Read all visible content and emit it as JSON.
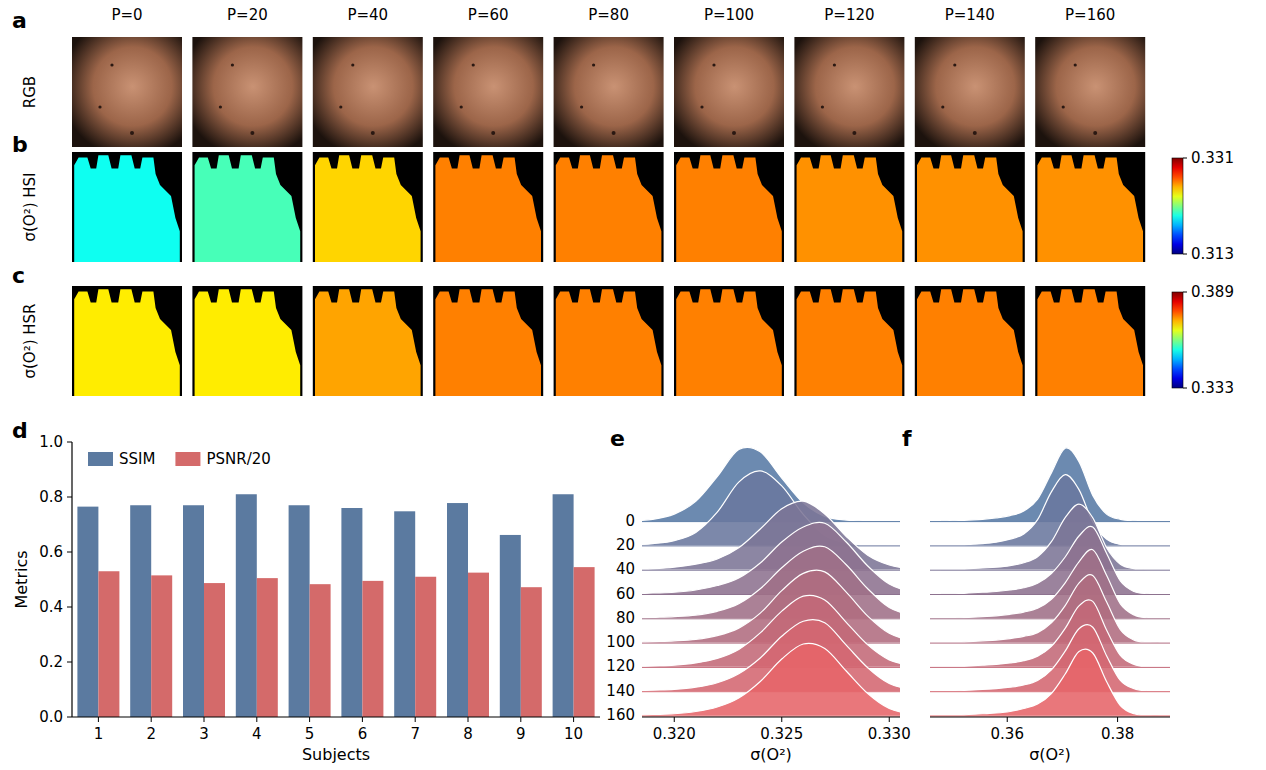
{
  "chart_data": [
    {
      "type": "image_row",
      "panel": "a",
      "row_label": "RGB",
      "categories": [
        "P=0",
        "P=20",
        "P=40",
        "P=60",
        "P=80",
        "P=100",
        "P=120",
        "P=140",
        "P=160"
      ]
    },
    {
      "type": "heatmap",
      "panel": "b",
      "row_label": "σ(O²) HSI",
      "values": [
        0.32,
        0.321,
        0.325,
        0.3265,
        0.3265,
        0.3265,
        0.3262,
        0.3262,
        0.3262
      ],
      "colorbar": {
        "range": [
          0.313,
          0.331
        ],
        "ticks": [
          0.313,
          0.331
        ]
      }
    },
    {
      "type": "heatmap",
      "panel": "c",
      "row_label": "σ(O²) HSR",
      "values": [
        0.369,
        0.369,
        0.373,
        0.375,
        0.375,
        0.375,
        0.375,
        0.375,
        0.375
      ],
      "colorbar": {
        "range": [
          0.333,
          0.389
        ],
        "ticks": [
          0.333,
          0.389
        ]
      }
    },
    {
      "type": "bar",
      "panel": "d",
      "x_label": "Subjects",
      "y_label": "Metrics",
      "categories": [
        "1",
        "2",
        "3",
        "4",
        "5",
        "6",
        "7",
        "8",
        "9",
        "10"
      ],
      "series": [
        {
          "name": "SSIM",
          "color": "#5b7aa0",
          "values": [
            0.765,
            0.77,
            0.77,
            0.81,
            0.77,
            0.76,
            0.748,
            0.778,
            0.662,
            0.81
          ]
        },
        {
          "name": "PSNR/20",
          "color": "#d46a6a",
          "values": [
            0.53,
            0.515,
            0.487,
            0.505,
            0.483,
            0.495,
            0.51,
            0.525,
            0.472,
            0.545
          ]
        }
      ],
      "ylim": [
        0,
        1
      ],
      "yticks": [
        {
          "value": 0,
          "label": "0.0"
        },
        {
          "value": 0.2,
          "label": "0.2"
        },
        {
          "value": 0.4,
          "label": "0.4"
        },
        {
          "value": 0.6,
          "label": "0.6"
        },
        {
          "value": 0.8,
          "label": "0.8"
        },
        {
          "value": 1,
          "label": "1.0"
        }
      ],
      "legend": "upper left"
    },
    {
      "type": "ridgeline",
      "panel": "e",
      "x_label": "σ(O²)",
      "x": [
        0.318,
        0.319,
        0.32,
        0.321,
        0.322,
        0.323,
        0.324,
        0.325,
        0.326,
        0.327,
        0.328,
        0.329,
        0.33,
        0.331,
        0.332,
        0.333
      ],
      "series": [
        {
          "name": "0",
          "color": "#587aa5",
          "values": [
            0.01,
            0.03,
            0.1,
            0.27,
            0.6,
            0.96,
            0.93,
            0.58,
            0.25,
            0.07,
            0.02,
            0.005,
            0,
            0,
            0,
            0
          ]
        },
        {
          "name": "20",
          "color": "#6a779e",
          "values": [
            0.01,
            0.03,
            0.07,
            0.18,
            0.45,
            0.85,
            1.0,
            0.8,
            0.42,
            0.14,
            0.04,
            0.01,
            0,
            0,
            0,
            0
          ]
        },
        {
          "name": "40",
          "color": "#7c7596",
          "values": [
            0.01,
            0.02,
            0.04,
            0.08,
            0.15,
            0.3,
            0.55,
            0.82,
            0.92,
            0.75,
            0.45,
            0.2,
            0.07,
            0.02,
            0,
            0
          ]
        },
        {
          "name": "60",
          "color": "#8d728f",
          "values": [
            0.01,
            0.02,
            0.03,
            0.06,
            0.12,
            0.22,
            0.42,
            0.7,
            0.9,
            0.95,
            0.7,
            0.38,
            0.14,
            0.04,
            0.01,
            0
          ]
        },
        {
          "name": "80",
          "color": "#9f6f87",
          "values": [
            0.01,
            0.02,
            0.03,
            0.05,
            0.1,
            0.2,
            0.4,
            0.68,
            0.9,
            0.96,
            0.72,
            0.4,
            0.15,
            0.05,
            0.01,
            0
          ]
        },
        {
          "name": "100",
          "color": "#b16c80",
          "values": [
            0.01,
            0.02,
            0.03,
            0.05,
            0.1,
            0.2,
            0.4,
            0.7,
            0.93,
            0.95,
            0.68,
            0.36,
            0.13,
            0.04,
            0.01,
            0
          ]
        },
        {
          "name": "120",
          "color": "#c36978",
          "values": [
            0.01,
            0.02,
            0.03,
            0.06,
            0.12,
            0.24,
            0.46,
            0.75,
            0.95,
            0.9,
            0.6,
            0.3,
            0.1,
            0.03,
            0.01,
            0
          ]
        },
        {
          "name": "140",
          "color": "#d46771",
          "values": [
            0.01,
            0.02,
            0.03,
            0.06,
            0.12,
            0.24,
            0.45,
            0.74,
            0.94,
            0.92,
            0.62,
            0.32,
            0.11,
            0.03,
            0.01,
            0
          ]
        },
        {
          "name": "160",
          "color": "#e66469",
          "values": [
            0.01,
            0.02,
            0.03,
            0.06,
            0.12,
            0.24,
            0.46,
            0.76,
            0.96,
            0.9,
            0.6,
            0.3,
            0.1,
            0.03,
            0.01,
            0
          ]
        }
      ],
      "xlim": [
        0.3185,
        0.3305
      ],
      "xticks": [
        {
          "value": 0.32,
          "label": "0.320"
        },
        {
          "value": 0.325,
          "label": "0.325"
        },
        {
          "value": 0.33,
          "label": "0.330"
        }
      ],
      "ylim": [
        0,
        1
      ]
    },
    {
      "type": "ridgeline",
      "panel": "f",
      "x_label": "σ(O²)",
      "x": [
        0.348,
        0.3505,
        0.353,
        0.3555,
        0.358,
        0.3605,
        0.363,
        0.3655,
        0.368,
        0.3705,
        0.373,
        0.3755,
        0.378,
        0.3805,
        0.383,
        0.3855,
        0.388
      ],
      "series": [
        {
          "color": "#587aa5",
          "values": [
            0.01,
            0.01,
            0.02,
            0.03,
            0.05,
            0.08,
            0.14,
            0.3,
            0.65,
            0.98,
            0.8,
            0.35,
            0.1,
            0.03,
            0.01,
            0,
            0
          ]
        },
        {
          "color": "#6a779e",
          "values": [
            0.01,
            0.01,
            0.02,
            0.03,
            0.05,
            0.09,
            0.16,
            0.35,
            0.72,
            0.95,
            0.75,
            0.32,
            0.09,
            0.02,
            0.01,
            0,
            0
          ]
        },
        {
          "color": "#7c7596",
          "values": [
            0.01,
            0.01,
            0.02,
            0.03,
            0.04,
            0.06,
            0.1,
            0.18,
            0.38,
            0.7,
            0.88,
            0.7,
            0.3,
            0.08,
            0.02,
            0,
            0
          ]
        },
        {
          "color": "#8d728f",
          "values": [
            0.01,
            0.01,
            0.02,
            0.03,
            0.04,
            0.06,
            0.09,
            0.15,
            0.28,
            0.5,
            0.78,
            0.9,
            0.55,
            0.18,
            0.04,
            0.01,
            0
          ]
        },
        {
          "color": "#9f6f87",
          "values": [
            0.01,
            0.01,
            0.02,
            0.03,
            0.04,
            0.06,
            0.09,
            0.14,
            0.26,
            0.48,
            0.76,
            0.92,
            0.58,
            0.2,
            0.05,
            0.01,
            0
          ]
        },
        {
          "color": "#b16c80",
          "values": [
            0.01,
            0.01,
            0.02,
            0.03,
            0.04,
            0.06,
            0.09,
            0.14,
            0.27,
            0.5,
            0.8,
            0.9,
            0.55,
            0.18,
            0.04,
            0.01,
            0
          ]
        },
        {
          "color": "#c36978",
          "values": [
            0.01,
            0.01,
            0.02,
            0.03,
            0.04,
            0.06,
            0.09,
            0.15,
            0.28,
            0.52,
            0.82,
            0.88,
            0.5,
            0.16,
            0.04,
            0.01,
            0
          ]
        },
        {
          "color": "#d46771",
          "values": [
            0.01,
            0.01,
            0.02,
            0.03,
            0.04,
            0.06,
            0.09,
            0.15,
            0.29,
            0.54,
            0.84,
            0.86,
            0.48,
            0.15,
            0.04,
            0.01,
            0
          ]
        },
        {
          "color": "#e66469",
          "values": [
            0.01,
            0.01,
            0.02,
            0.03,
            0.04,
            0.06,
            0.1,
            0.16,
            0.3,
            0.56,
            0.86,
            0.84,
            0.46,
            0.14,
            0.03,
            0.01,
            0
          ]
        }
      ],
      "xlim": [
        0.346,
        0.3895
      ],
      "xticks": [
        {
          "value": 0.36,
          "label": "0.36"
        },
        {
          "value": 0.38,
          "label": "0.38"
        }
      ],
      "ylim": [
        0,
        1
      ]
    }
  ]
}
